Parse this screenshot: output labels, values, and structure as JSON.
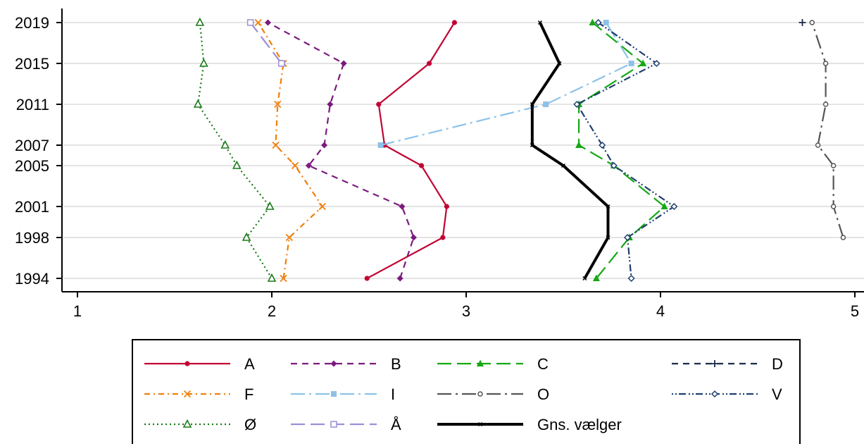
{
  "chart_data": {
    "type": "line",
    "title": "",
    "xlabel": "",
    "ylabel": "",
    "xlim": [
      1,
      5
    ],
    "x_ticks": [
      "1",
      "2",
      "3",
      "4",
      "5"
    ],
    "y_ticks": [
      "1994",
      "1998",
      "2001",
      "2005",
      "2007",
      "2011",
      "2015",
      "2019"
    ],
    "grid": "horizontal",
    "legend_position": "bottom",
    "series": [
      {
        "name": "A",
        "color": "#c10534",
        "dash": "solid",
        "marker": "circle",
        "points": [
          {
            "year": 1994,
            "value": 2.49
          },
          {
            "year": 1998,
            "value": 2.88
          },
          {
            "year": 2001,
            "value": 2.9
          },
          {
            "year": 2005,
            "value": 2.77
          },
          {
            "year": 2007,
            "value": 2.58
          },
          {
            "year": 2011,
            "value": 2.55
          },
          {
            "year": 2015,
            "value": 2.81
          },
          {
            "year": 2019,
            "value": 2.94
          }
        ]
      },
      {
        "name": "B",
        "color": "#7b1a7e",
        "dash": "dash",
        "marker": "diamond",
        "points": [
          {
            "year": 1994,
            "value": 2.66
          },
          {
            "year": 1998,
            "value": 2.73
          },
          {
            "year": 2001,
            "value": 2.67
          },
          {
            "year": 2005,
            "value": 2.19
          },
          {
            "year": 2007,
            "value": 2.27
          },
          {
            "year": 2011,
            "value": 2.3
          },
          {
            "year": 2015,
            "value": 2.37
          },
          {
            "year": 2019,
            "value": 1.98
          }
        ]
      },
      {
        "name": "C",
        "color": "#14a814",
        "dash": "longdash",
        "marker": "triangle",
        "points": [
          {
            "year": 1994,
            "value": 3.67
          },
          {
            "year": 1998,
            "value": 3.84
          },
          {
            "year": 2001,
            "value": 4.02
          },
          {
            "year": 2005,
            "value": 3.76
          },
          {
            "year": 2007,
            "value": 3.58
          },
          {
            "year": 2011,
            "value": 3.58
          },
          {
            "year": 2015,
            "value": 3.91
          },
          {
            "year": 2019,
            "value": 3.65
          }
        ]
      },
      {
        "name": "D",
        "color": "#1a2b4c",
        "dash": "dash",
        "marker": "plus",
        "points": [
          {
            "year": 2019,
            "value": 4.73
          }
        ]
      },
      {
        "name": "F",
        "color": "#f07f09",
        "dash": "dashdot",
        "marker": "x",
        "points": [
          {
            "year": 1994,
            "value": 2.06
          },
          {
            "year": 1998,
            "value": 2.09
          },
          {
            "year": 2001,
            "value": 2.26
          },
          {
            "year": 2005,
            "value": 2.12
          },
          {
            "year": 2007,
            "value": 2.02
          },
          {
            "year": 2011,
            "value": 2.03
          },
          {
            "year": 2015,
            "value": 2.06
          },
          {
            "year": 2019,
            "value": 1.93
          }
        ]
      },
      {
        "name": "I",
        "color": "#8dc2e8",
        "dash": "longdashdot",
        "marker": "square",
        "points": [
          {
            "year": 2007,
            "value": 2.56
          },
          {
            "year": 2011,
            "value": 3.41
          },
          {
            "year": 2015,
            "value": 3.85
          },
          {
            "year": 2019,
            "value": 3.72
          }
        ]
      },
      {
        "name": "O",
        "color": "#555555",
        "dash": "longdashdot",
        "marker": "hollow-circle",
        "points": [
          {
            "year": 1998,
            "value": 4.94
          },
          {
            "year": 2001,
            "value": 4.89
          },
          {
            "year": 2005,
            "value": 4.89
          },
          {
            "year": 2007,
            "value": 4.81
          },
          {
            "year": 2011,
            "value": 4.85
          },
          {
            "year": 2015,
            "value": 4.85
          },
          {
            "year": 2019,
            "value": 4.78
          }
        ]
      },
      {
        "name": "V",
        "color": "#1f3f6e",
        "dash": "dotdash",
        "marker": "hollow-diamond",
        "points": [
          {
            "year": 1994,
            "value": 3.85
          },
          {
            "year": 1998,
            "value": 3.83
          },
          {
            "year": 2001,
            "value": 4.07
          },
          {
            "year": 2005,
            "value": 3.76
          },
          {
            "year": 2007,
            "value": 3.7
          },
          {
            "year": 2011,
            "value": 3.57
          },
          {
            "year": 2015,
            "value": 3.98
          },
          {
            "year": 2019,
            "value": 3.68
          }
        ]
      },
      {
        "name": "Ø",
        "color": "#1a7a1a",
        "dash": "dotted",
        "marker": "hollow-triangle",
        "points": [
          {
            "year": 1994,
            "value": 2.0
          },
          {
            "year": 1998,
            "value": 1.87
          },
          {
            "year": 2001,
            "value": 1.99
          },
          {
            "year": 2005,
            "value": 1.82
          },
          {
            "year": 2007,
            "value": 1.76
          },
          {
            "year": 2011,
            "value": 1.62
          },
          {
            "year": 2015,
            "value": 1.65
          },
          {
            "year": 2019,
            "value": 1.63
          }
        ]
      },
      {
        "name": "Å",
        "color": "#9a8fd8",
        "dash": "longdash",
        "marker": "hollow-square",
        "points": [
          {
            "year": 2015,
            "value": 2.05
          },
          {
            "year": 2019,
            "value": 1.89
          }
        ]
      },
      {
        "name": "Gns. vælger",
        "color": "#000000",
        "dash": "solid-thick",
        "marker": "small-x",
        "points": [
          {
            "year": 1994,
            "value": 3.61
          },
          {
            "year": 1998,
            "value": 3.73
          },
          {
            "year": 2001,
            "value": 3.73
          },
          {
            "year": 2005,
            "value": 3.5
          },
          {
            "year": 2007,
            "value": 3.34
          },
          {
            "year": 2011,
            "value": 3.34
          },
          {
            "year": 2015,
            "value": 3.48
          },
          {
            "year": 2019,
            "value": 3.38
          }
        ]
      }
    ]
  }
}
